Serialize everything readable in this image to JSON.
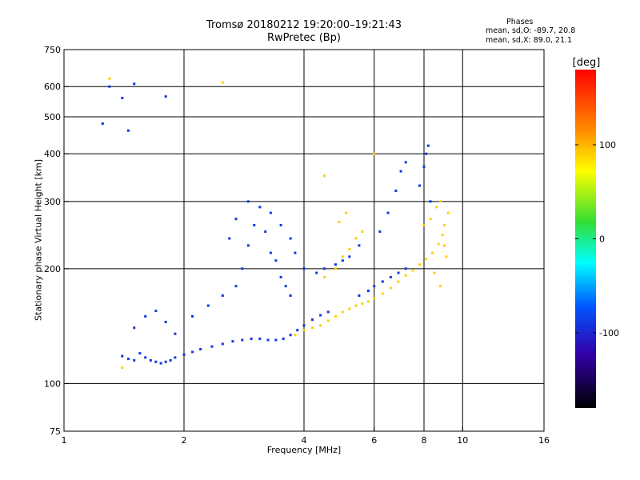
{
  "chart_data": {
    "type": "scatter",
    "title": "Tromsø 20180212 19:20:00–19:21:43",
    "subtitle": "RwPretec (Bp)",
    "xlabel": "Frequency [MHz]",
    "ylabel": "Stationary phase Virtual Height [km]",
    "x_scale": "log",
    "y_scale": "log",
    "xlim": [
      1,
      16
    ],
    "ylim": [
      75,
      750
    ],
    "x_ticks": [
      1,
      2,
      4,
      6,
      8,
      10,
      16
    ],
    "x_tick_labels": [
      "1",
      "2",
      "4",
      "6",
      "8",
      "10",
      "16"
    ],
    "y_ticks": [
      75,
      100,
      200,
      300,
      400,
      500,
      600,
      750
    ],
    "y_tick_labels": [
      "75",
      "100",
      "200",
      "300",
      "400",
      "500",
      "600",
      "750"
    ],
    "x_gridlines": [
      2,
      4,
      6,
      8,
      10
    ],
    "y_gridlines": [
      100,
      200,
      300,
      400,
      500,
      600
    ],
    "grid": true,
    "stats": {
      "heading": "Phases",
      "line1": "mean, sd,O: -89.7, 20.8",
      "line2": "mean, sd,X:  89.0, 21.1"
    },
    "colorbar": {
      "label": "[deg]",
      "range": [
        -180,
        180
      ],
      "ticks": [
        100,
        0,
        -100
      ],
      "tick_labels": [
        "100",
        "0",
        "-100"
      ]
    },
    "series": [
      {
        "polarization": "O",
        "phase_deg": -90,
        "points": [
          [
            1.4,
            118
          ],
          [
            1.45,
            116
          ],
          [
            1.5,
            115
          ],
          [
            1.55,
            120
          ],
          [
            1.6,
            117
          ],
          [
            1.65,
            115
          ],
          [
            1.7,
            114
          ],
          [
            1.75,
            113
          ],
          [
            1.8,
            114
          ],
          [
            1.85,
            115
          ],
          [
            1.9,
            117
          ],
          [
            2.0,
            119
          ],
          [
            2.1,
            121
          ],
          [
            2.2,
            123
          ],
          [
            2.35,
            125
          ],
          [
            2.5,
            127
          ],
          [
            2.65,
            129
          ],
          [
            2.8,
            130
          ],
          [
            2.95,
            131
          ],
          [
            3.1,
            131
          ],
          [
            3.25,
            130
          ],
          [
            3.4,
            130
          ],
          [
            3.55,
            131
          ],
          [
            3.7,
            134
          ],
          [
            3.85,
            138
          ],
          [
            4.0,
            142
          ],
          [
            4.2,
            147
          ],
          [
            4.4,
            151
          ],
          [
            4.6,
            154
          ],
          [
            1.5,
            140
          ],
          [
            1.6,
            150
          ],
          [
            1.7,
            155
          ],
          [
            1.8,
            145
          ],
          [
            1.9,
            135
          ],
          [
            2.1,
            150
          ],
          [
            2.3,
            160
          ],
          [
            2.5,
            170
          ],
          [
            2.7,
            180
          ],
          [
            2.8,
            200
          ],
          [
            2.9,
            230
          ],
          [
            3.0,
            260
          ],
          [
            3.1,
            290
          ],
          [
            3.2,
            250
          ],
          [
            3.3,
            220
          ],
          [
            3.4,
            210
          ],
          [
            3.5,
            190
          ],
          [
            3.6,
            180
          ],
          [
            3.7,
            170
          ],
          [
            2.6,
            240
          ],
          [
            2.7,
            270
          ],
          [
            2.9,
            300
          ],
          [
            3.3,
            280
          ],
          [
            3.5,
            260
          ],
          [
            3.7,
            240
          ],
          [
            3.8,
            220
          ],
          [
            4.0,
            200
          ],
          [
            4.3,
            195
          ],
          [
            4.5,
            200
          ],
          [
            4.8,
            205
          ],
          [
            5.0,
            210
          ],
          [
            5.2,
            215
          ],
          [
            5.5,
            230
          ],
          [
            5.5,
            170
          ],
          [
            5.8,
            175
          ],
          [
            6.0,
            180
          ],
          [
            6.3,
            185
          ],
          [
            6.6,
            190
          ],
          [
            6.9,
            195
          ],
          [
            7.2,
            200
          ],
          [
            6.2,
            250
          ],
          [
            6.5,
            280
          ],
          [
            6.8,
            320
          ],
          [
            7.0,
            360
          ],
          [
            7.2,
            380
          ],
          [
            7.8,
            330
          ],
          [
            8.0,
            370
          ],
          [
            8.1,
            400
          ],
          [
            8.2,
            420
          ],
          [
            8.3,
            300
          ],
          [
            1.25,
            480
          ],
          [
            1.3,
            600
          ],
          [
            1.5,
            610
          ],
          [
            1.4,
            560
          ],
          [
            1.45,
            460
          ],
          [
            1.8,
            565
          ]
        ]
      },
      {
        "polarization": "X",
        "phase_deg": 90,
        "points": [
          [
            3.8,
            134
          ],
          [
            4.0,
            138
          ],
          [
            4.2,
            140
          ],
          [
            4.4,
            142
          ],
          [
            4.6,
            146
          ],
          [
            4.8,
            150
          ],
          [
            5.0,
            154
          ],
          [
            5.2,
            157
          ],
          [
            5.4,
            160
          ],
          [
            5.6,
            162
          ],
          [
            5.8,
            164
          ],
          [
            6.0,
            167
          ],
          [
            6.3,
            172
          ],
          [
            6.6,
            178
          ],
          [
            6.9,
            185
          ],
          [
            7.2,
            192
          ],
          [
            7.5,
            198
          ],
          [
            7.8,
            205
          ],
          [
            8.1,
            212
          ],
          [
            8.4,
            220
          ],
          [
            8.7,
            232
          ],
          [
            8.9,
            245
          ],
          [
            9.0,
            260
          ],
          [
            9.2,
            280
          ],
          [
            4.5,
            190
          ],
          [
            4.8,
            200
          ],
          [
            5.0,
            215
          ],
          [
            5.2,
            225
          ],
          [
            5.4,
            240
          ],
          [
            5.6,
            250
          ],
          [
            4.9,
            265
          ],
          [
            5.1,
            280
          ],
          [
            8.0,
            260
          ],
          [
            8.3,
            270
          ],
          [
            8.6,
            290
          ],
          [
            8.8,
            300
          ],
          [
            9.0,
            230
          ],
          [
            9.1,
            215
          ],
          [
            8.5,
            195
          ],
          [
            8.8,
            180
          ],
          [
            1.3,
            630
          ],
          [
            1.4,
            110
          ],
          [
            2.5,
            615
          ],
          [
            4.5,
            350
          ],
          [
            6.0,
            400
          ]
        ]
      }
    ]
  }
}
